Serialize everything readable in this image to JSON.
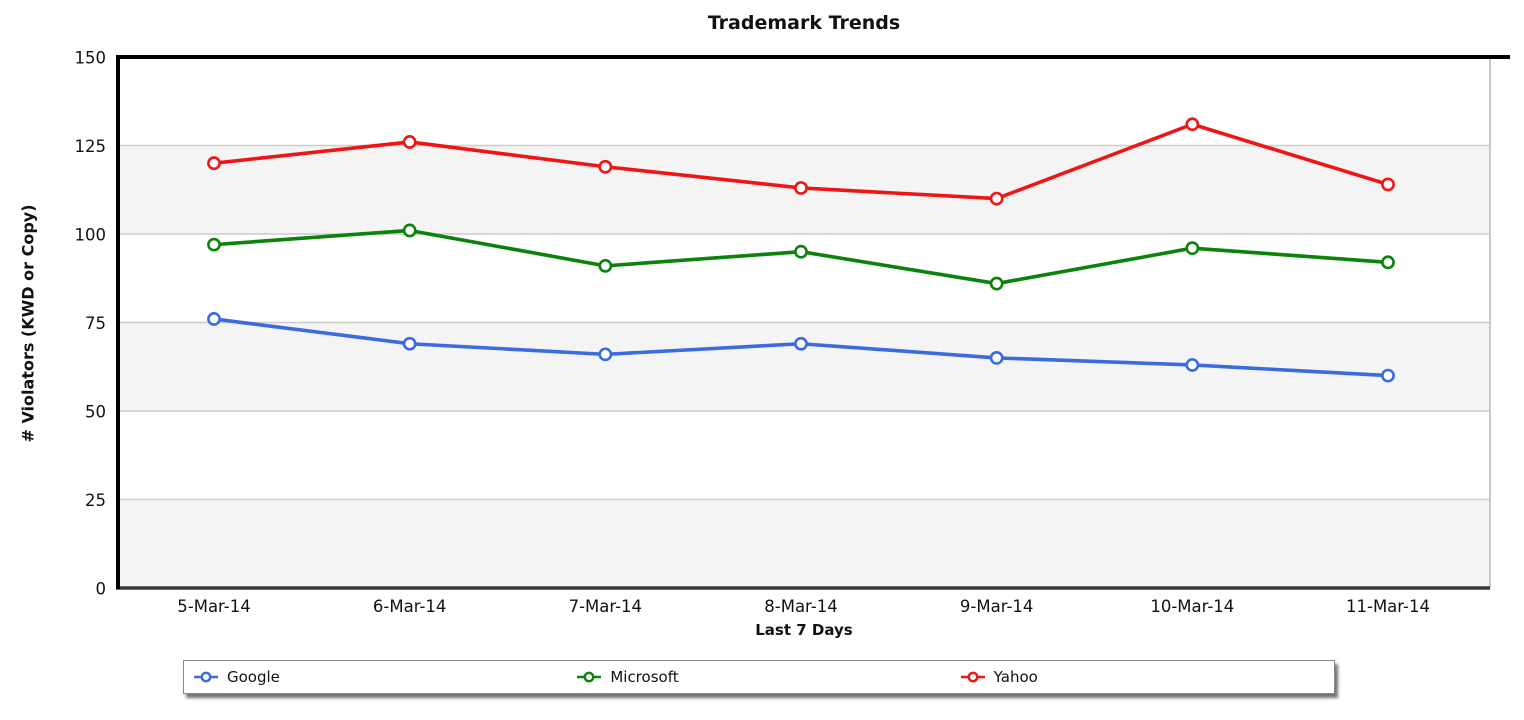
{
  "title": "Trademark Trends",
  "chart_data": {
    "type": "line",
    "title": "Trademark Trends",
    "xlabel": "Last 7 Days",
    "ylabel": "# Violators (KWD or Copy)",
    "categories": [
      "5-Mar-14",
      "6-Mar-14",
      "7-Mar-14",
      "8-Mar-14",
      "9-Mar-14",
      "10-Mar-14",
      "11-Mar-14"
    ],
    "series": [
      {
        "name": "Google",
        "color": "#3B6BE1",
        "values": [
          76,
          69,
          66,
          69,
          65,
          63,
          60
        ]
      },
      {
        "name": "Microsoft",
        "color": "#0B820B",
        "values": [
          97,
          101,
          91,
          95,
          86,
          96,
          92
        ]
      },
      {
        "name": "Yahoo",
        "color": "#F01414",
        "values": [
          120,
          126,
          119,
          113,
          110,
          131,
          114
        ]
      }
    ],
    "ylim": [
      0,
      150
    ],
    "ytick_step": 25,
    "yticks": [
      "0",
      "25",
      "50",
      "75",
      "100",
      "125",
      "150"
    ],
    "grid": true,
    "legend_position": "bottom",
    "marker_style": "open-circle",
    "band_color": "#f4f4f4",
    "gridline_color": "#cccccc",
    "axis_color": "#000000"
  }
}
